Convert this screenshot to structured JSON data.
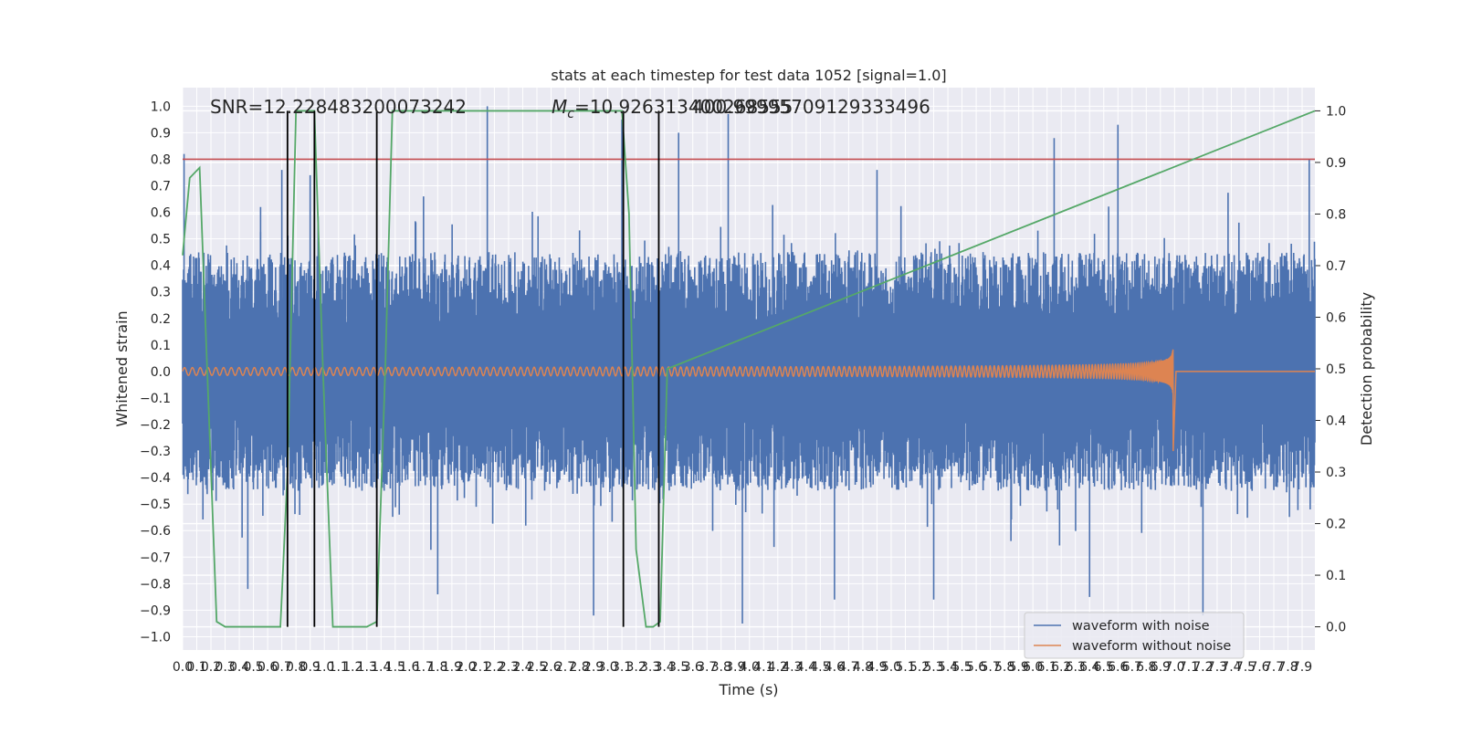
{
  "chart_data": {
    "type": "line",
    "title": "stats at each timestep for test data 1052 [signal=1.0]",
    "xlabel": "Time (s)",
    "ylabel": "Whitened strain",
    "y2label": "Detection probability",
    "xlim": [
      0.0,
      7.99
    ],
    "ylim": [
      -1.05,
      1.07
    ],
    "y2lim": [
      -0.045,
      1.045
    ],
    "x_ticks": [
      "0.0",
      "0.1",
      "0.2",
      "0.3",
      "0.4",
      "0.5",
      "0.6",
      "0.7",
      "0.8",
      "0.9",
      "1.0",
      "1.1",
      "1.2",
      "1.3",
      "1.4",
      "1.5",
      "1.6",
      "1.7",
      "1.8",
      "1.9",
      "2.0",
      "2.1",
      "2.2",
      "2.3",
      "2.4",
      "2.5",
      "2.6",
      "2.7",
      "2.8",
      "2.9",
      "3.0",
      "3.1",
      "3.2",
      "3.3",
      "3.4",
      "3.5",
      "3.6",
      "3.7",
      "3.8",
      "3.9",
      "4.0",
      "4.1",
      "4.2",
      "4.3",
      "4.4",
      "4.5",
      "4.6",
      "4.7",
      "4.8",
      "4.9",
      "5.0",
      "5.1",
      "5.2",
      "5.3",
      "5.4",
      "5.5",
      "5.6",
      "5.7",
      "5.8",
      "5.9",
      "6.0",
      "6.1",
      "6.2",
      "6.3",
      "6.4",
      "6.5",
      "6.6",
      "6.7",
      "6.8",
      "6.9",
      "7.0",
      "7.1",
      "7.2",
      "7.3",
      "7.4",
      "7.5",
      "7.6",
      "7.7",
      "7.8",
      "7.9"
    ],
    "y_ticks": [
      "1.0",
      "0.9",
      "0.8",
      "0.7",
      "0.6",
      "0.5",
      "0.4",
      "0.3",
      "0.2",
      "0.1",
      "0.0",
      "-0.1",
      "-0.2",
      "-0.3",
      "-0.4",
      "-0.5",
      "-0.6",
      "-0.7",
      "-0.8",
      "-0.9",
      "-1.0"
    ],
    "y2_ticks": [
      "1.0",
      "0.9",
      "0.8",
      "0.7",
      "0.6",
      "0.5",
      "0.4",
      "0.3",
      "0.2",
      "0.1",
      "0.0"
    ],
    "grid": true,
    "legend_position": "lower-right",
    "annotations": {
      "snr": "SNR=12.228483200073242",
      "mc": "M",
      "mc_sub": "c",
      "mc_value": "=10.926313400268555",
      "overlap": "400.99995709129333496"
    },
    "series": [
      {
        "name": "waveform with noise",
        "color": "#4c72b0",
        "noise_envelope": {
          "typical_peak": 0.45,
          "max_peak": 1.0,
          "min_trough": -0.92
        },
        "spikes": [
          [
            0.01,
            0.82
          ],
          [
            0.55,
            0.62
          ],
          [
            0.7,
            0.76
          ],
          [
            0.9,
            0.74
          ],
          [
            1.7,
            0.66
          ],
          [
            2.15,
            1.0
          ],
          [
            3.1,
            0.95
          ],
          [
            3.5,
            0.9
          ],
          [
            3.85,
            0.97
          ],
          [
            4.9,
            0.76
          ],
          [
            6.15,
            0.88
          ],
          [
            6.6,
            0.93
          ],
          [
            7.95,
            0.8
          ],
          [
            0.46,
            -0.82
          ],
          [
            1.8,
            -0.84
          ],
          [
            2.9,
            -0.92
          ],
          [
            3.95,
            -0.95
          ],
          [
            4.6,
            -0.86
          ],
          [
            5.3,
            -0.86
          ],
          [
            6.4,
            -0.85
          ],
          [
            7.2,
            -0.92
          ]
        ]
      },
      {
        "name": "waveform without noise",
        "color": "#dd8452",
        "chirp": {
          "initial_amplitude": 0.014,
          "peak_amplitude": 0.4,
          "merger_time": 6.99,
          "final_value": 0.0
        }
      },
      {
        "name": "detection probability",
        "color": "#55a868",
        "axis": "right",
        "x": [
          0.0,
          0.05,
          0.12,
          0.24,
          0.3,
          0.4,
          0.5,
          0.6,
          0.69,
          0.74,
          0.8,
          0.86,
          0.93,
          0.99,
          1.06,
          1.1,
          1.15,
          1.3,
          1.37,
          1.43,
          1.48,
          3.1,
          3.15,
          3.2,
          3.27,
          3.32,
          3.37,
          3.42,
          7.99
        ],
        "values": [
          0.72,
          0.87,
          0.89,
          0.01,
          0.0,
          0.0,
          0.0,
          0.0,
          0.0,
          0.3,
          1.0,
          1.0,
          1.0,
          0.5,
          0.0,
          0.0,
          0.0,
          0.0,
          0.01,
          0.5,
          1.0,
          1.0,
          0.8,
          0.15,
          0.0,
          0.0,
          0.01,
          0.5,
          1.0
        ]
      }
    ],
    "threshold": {
      "value": 0.8,
      "axis": "left",
      "color": "#c44e52"
    },
    "vertical_markers": [
      0.74,
      0.93,
      1.37,
      3.11,
      3.36
    ]
  }
}
